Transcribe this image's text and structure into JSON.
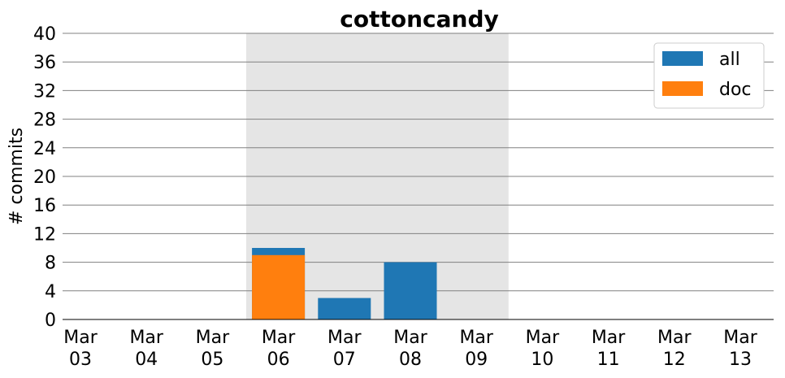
{
  "chart_data": {
    "type": "bar",
    "title": "cottoncandy",
    "xlabel": "",
    "ylabel": "# commits",
    "ylim": [
      0,
      40
    ],
    "yticks": [
      0,
      4,
      8,
      12,
      16,
      20,
      24,
      28,
      32,
      36,
      40
    ],
    "grid": "horizontal",
    "legend_position": "top-right",
    "categories": [
      "Mar 03",
      "Mar 04",
      "Mar 05",
      "Mar 06",
      "Mar 07",
      "Mar 08",
      "Mar 09",
      "Mar 10",
      "Mar 11",
      "Mar 12",
      "Mar 13"
    ],
    "highlight_span": [
      "Mar 06",
      "Mar 09"
    ],
    "highlight_color": "#e5e5e5",
    "series": [
      {
        "name": "all",
        "color": "#1f77b4",
        "values": [
          0,
          0,
          0,
          10,
          3,
          8,
          0,
          0,
          0,
          0,
          0
        ]
      },
      {
        "name": "doc",
        "color": "#ff7f0e",
        "values": [
          0,
          0,
          0,
          9,
          0,
          0,
          0,
          0,
          0,
          0,
          0
        ]
      }
    ]
  }
}
